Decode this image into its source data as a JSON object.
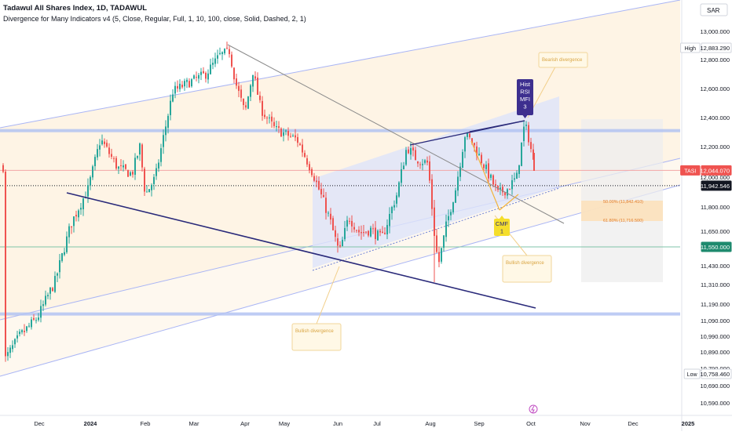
{
  "header": {
    "title": "Tadawul All Shares Index, 1D, TADAWUL",
    "indicator": "Divergence for Many Indicators v4 (5, Close, Regular, Full, 1, 10, 100, close, Solid, Dashed, 2, 1)"
  },
  "currency_button": "SAR",
  "labels": {
    "high": "High",
    "low": "Low",
    "ticker": "TASI"
  },
  "chart_data": {
    "type": "candlestick",
    "title": "Tadawul All Shares Index, 1D, TADAWUL",
    "y_axis": {
      "ticks": [
        13000,
        12800,
        12600,
        12400,
        12200,
        12000,
        11800,
        11650,
        11430,
        11310,
        11190,
        11090,
        10990,
        10890,
        10790,
        10690,
        10590
      ],
      "tick_labels": [
        "13,000.000",
        "12,800.000",
        "12,600.000",
        "12,400.000",
        "12,200.000",
        "12,000.000",
        "11,800.000",
        "11,650.000",
        "11,430.000",
        "11,310.000",
        "11,190.000",
        "11,090.000",
        "10,990.000",
        "10,890.000",
        "10,790.000",
        "10,690.000",
        "10,590.000"
      ]
    },
    "x_axis": {
      "ticks": [
        "Dec",
        "2024",
        "Feb",
        "Mar",
        "Apr",
        "May",
        "Jun",
        "Jul",
        "Aug",
        "Sep",
        "Oct",
        "Nov",
        "Dec",
        "2025"
      ]
    },
    "price_markers": [
      {
        "name": "high",
        "label": "12,883.290",
        "value": 12883.29
      },
      {
        "name": "last",
        "label": "12,044.070",
        "value": 12044.07
      },
      {
        "name": "current",
        "label": "11,942.546",
        "value": 11942.546
      },
      {
        "name": "level",
        "label": "11,550.000",
        "value": 11550.0
      },
      {
        "name": "low",
        "label": "10,758.460",
        "value": 10758.46
      }
    ],
    "projection": {
      "upper_label": "50.00% (11,842.410)",
      "lower_label": "61.80% (11,716.500)"
    },
    "signals": {
      "bearish_lines": [
        "Hist",
        "RSI",
        "MFI",
        "3"
      ],
      "bullish_lines": [
        "CMF",
        "1"
      ]
    },
    "annotations": {
      "top": "Bearish divergence",
      "note_aug": "Bullish divergence",
      "note_jun": "Bullish divergence"
    },
    "grid": false,
    "legend": "none"
  }
}
